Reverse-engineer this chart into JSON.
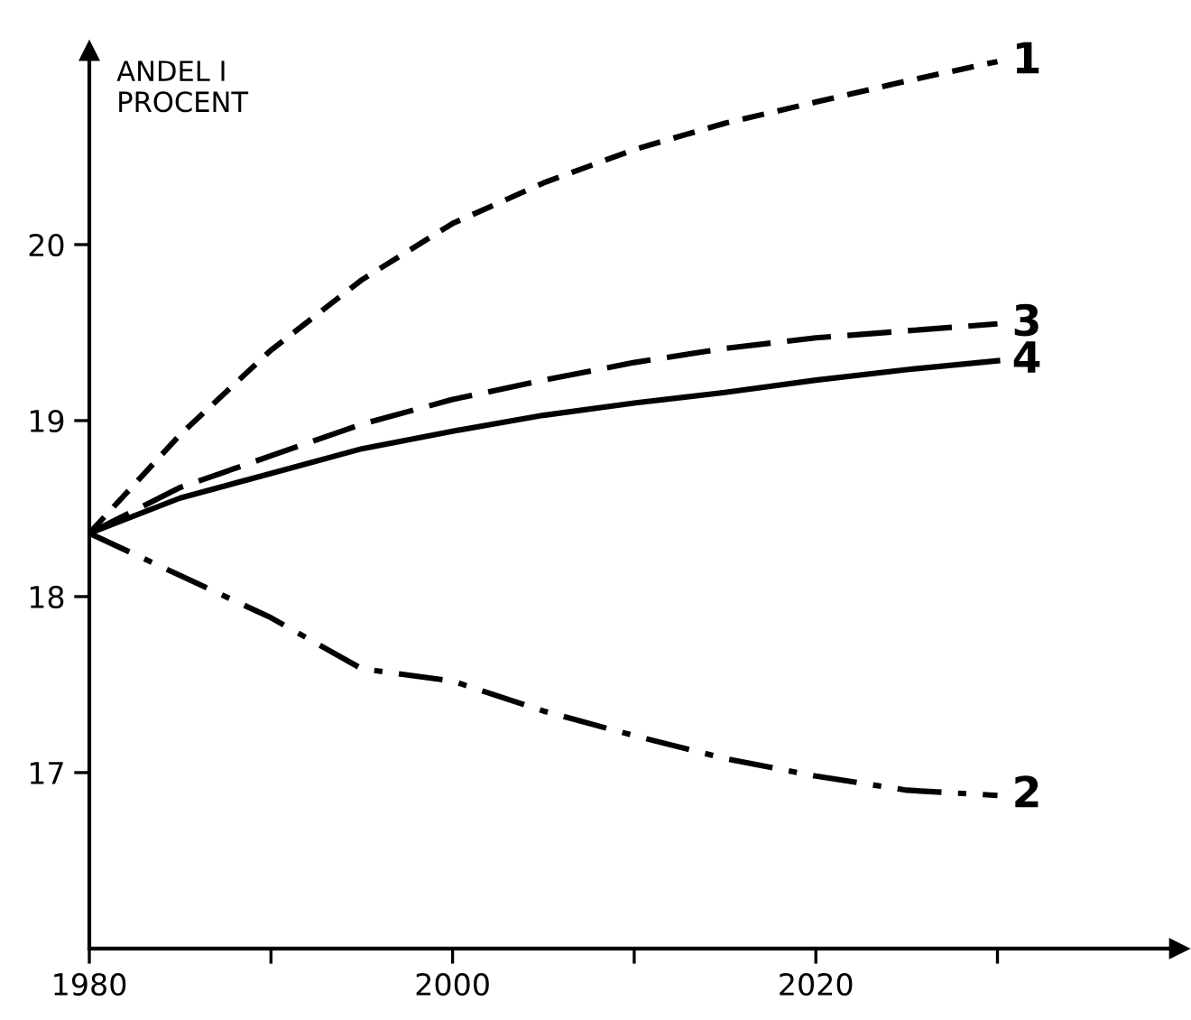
{
  "chart_data": {
    "type": "line",
    "ylabel": "ANDEL I\nPROCENT",
    "x": [
      1980,
      1985,
      1990,
      1995,
      2000,
      2005,
      2010,
      2015,
      2020,
      2025,
      2030
    ],
    "series": [
      {
        "name": "1",
        "color": "#000000",
        "line_style": "dashed",
        "values": [
          18.36,
          18.92,
          19.4,
          19.8,
          20.12,
          20.35,
          20.54,
          20.69,
          20.81,
          20.93,
          21.04
        ]
      },
      {
        "name": "2",
        "color": "#000000",
        "line_style": "dashdot",
        "values": [
          18.36,
          18.12,
          17.88,
          17.59,
          17.52,
          17.35,
          17.21,
          17.08,
          16.98,
          16.9,
          16.87
        ]
      },
      {
        "name": "3",
        "color": "#000000",
        "line_style": "longdash",
        "values": [
          18.36,
          18.62,
          18.8,
          18.98,
          19.12,
          19.23,
          19.33,
          19.41,
          19.47,
          19.51,
          19.55
        ]
      },
      {
        "name": "4",
        "color": "#000000",
        "line_style": "solid",
        "values": [
          18.36,
          18.56,
          18.7,
          18.84,
          18.94,
          19.03,
          19.1,
          19.16,
          19.23,
          19.29,
          19.34
        ]
      }
    ],
    "xlim": [
      1980,
      2040
    ],
    "ylim": [
      16.0,
      21.1
    ],
    "xticks": [
      1980,
      {
        "value": 1990,
        "label": null
      },
      2000,
      {
        "value": 2010,
        "label": null
      },
      2020,
      {
        "value": 2030,
        "label": null
      }
    ],
    "yticks": [
      17,
      18,
      19,
      20
    ],
    "grid": false,
    "legend": false,
    "marker": "none"
  }
}
